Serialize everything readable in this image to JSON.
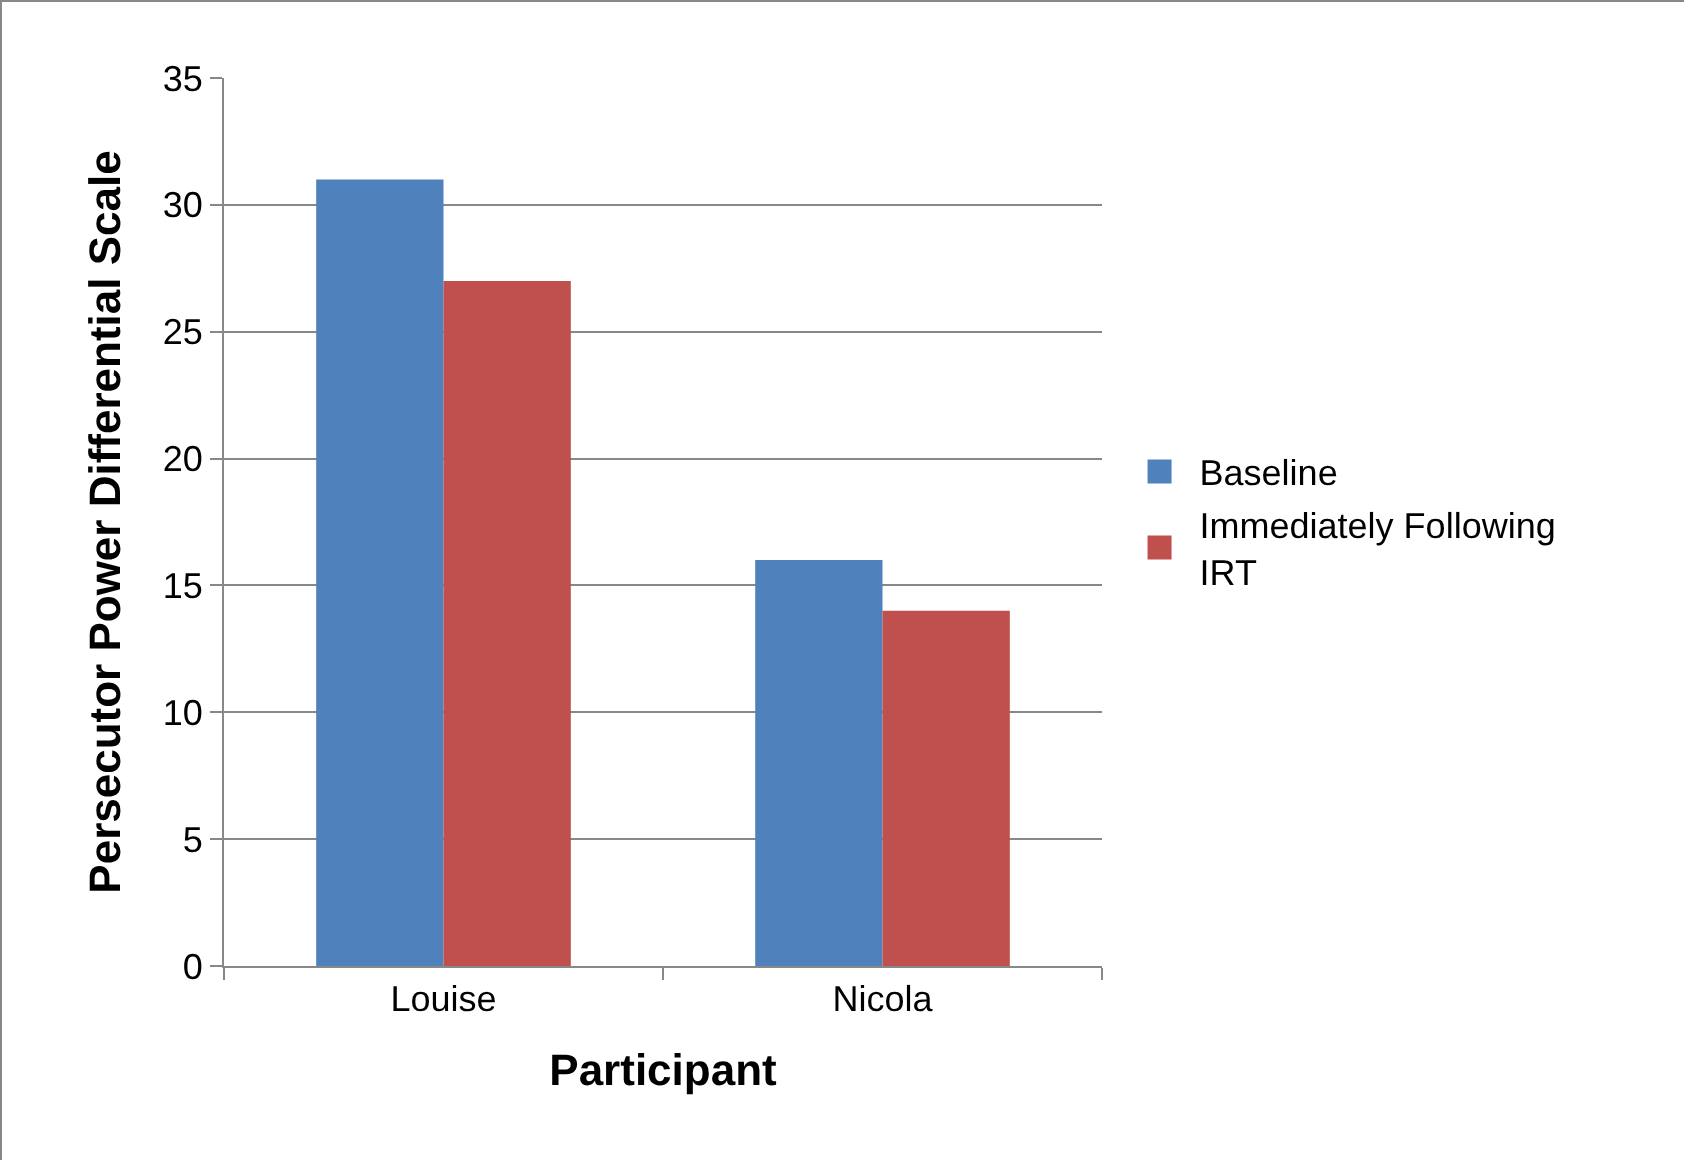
{
  "chart_data": {
    "type": "bar",
    "xlabel": "Participant",
    "ylabel": "Persecutor Power Differential Scale",
    "categories": [
      "Louise",
      "Nicola"
    ],
    "series": [
      {
        "name": "Baseline",
        "color": "#4f81bd",
        "values": [
          31,
          16
        ]
      },
      {
        "name": "Immediately Following IRT",
        "color": "#c0504d",
        "values": [
          27,
          14
        ]
      }
    ],
    "ylim": [
      0,
      35
    ],
    "yticks": [
      0,
      5,
      10,
      15,
      20,
      25,
      30,
      35
    ],
    "grid": "y",
    "legend": "right"
  }
}
